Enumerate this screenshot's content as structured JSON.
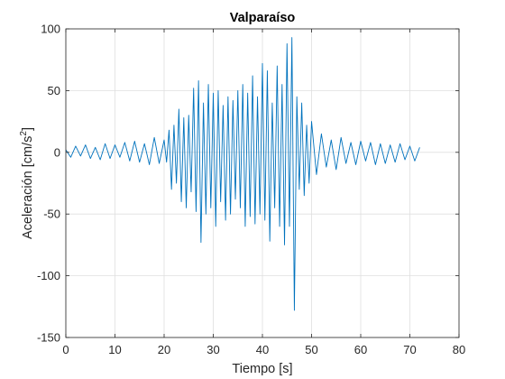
{
  "chart_data": {
    "type": "line",
    "title": "Valparaíso",
    "xlabel": "Tiempo [s]",
    "ylabel": "Aceleración [cm/s2]",
    "xlim": [
      0,
      80
    ],
    "ylim": [
      -150,
      100
    ],
    "grid": true,
    "legend": "none",
    "x_ticks": [
      0,
      10,
      20,
      30,
      40,
      50,
      60,
      70,
      80
    ],
    "y_ticks": [
      -150,
      -100,
      -50,
      0,
      50,
      100
    ],
    "x_tick_labels": [
      "0",
      "10",
      "20",
      "30",
      "40",
      "50",
      "60",
      "70",
      "80"
    ],
    "y_tick_labels": [
      "-150",
      "-100",
      "-50",
      "0",
      "50",
      "100"
    ],
    "series": [
      {
        "color": "#0072BD",
        "x": [
          0,
          1,
          2,
          3,
          4,
          5,
          6,
          7,
          8,
          9,
          10,
          11,
          12,
          13,
          14,
          15,
          16,
          17,
          18,
          19,
          20,
          20.5,
          21,
          21.5,
          22,
          22.5,
          23,
          23.5,
          24,
          24.5,
          25,
          25.5,
          26,
          26.5,
          27,
          27.5,
          28,
          28.5,
          29,
          29.5,
          30,
          30.5,
          31,
          31.5,
          32,
          32.5,
          33,
          33.5,
          34,
          34.5,
          35,
          35.5,
          36,
          36.5,
          37,
          37.5,
          38,
          38.5,
          39,
          39.5,
          40,
          40.5,
          41,
          41.5,
          42,
          42.5,
          43,
          43.5,
          44,
          44.5,
          45,
          45.5,
          46,
          46.5,
          47,
          47.5,
          48,
          48.5,
          49,
          49.5,
          50,
          51,
          52,
          53,
          54,
          55,
          56,
          57,
          58,
          59,
          60,
          61,
          62,
          63,
          64,
          65,
          66,
          67,
          68,
          69,
          70,
          71,
          72
        ],
        "y": [
          2,
          -4,
          5,
          -3,
          6,
          -5,
          4,
          -6,
          7,
          -5,
          6,
          -4,
          8,
          -7,
          9,
          -8,
          7,
          -10,
          12,
          -9,
          10,
          -8,
          18,
          -30,
          22,
          -25,
          35,
          -40,
          28,
          -45,
          30,
          -32,
          52,
          -48,
          58,
          -73,
          40,
          -50,
          55,
          -45,
          48,
          -60,
          50,
          -40,
          38,
          -55,
          45,
          -50,
          42,
          -38,
          50,
          -45,
          55,
          -60,
          48,
          -52,
          62,
          -58,
          45,
          -50,
          72,
          -55,
          66,
          -72,
          40,
          -45,
          70,
          -60,
          55,
          -75,
          88,
          -60,
          93,
          -128,
          45,
          -30,
          40,
          -35,
          22,
          -25,
          25,
          -18,
          15,
          -12,
          10,
          -14,
          12,
          -9,
          8,
          -10,
          9,
          -7,
          8,
          -10,
          7,
          -9,
          6,
          -8,
          7,
          -6,
          5,
          -7,
          4
        ]
      }
    ]
  }
}
